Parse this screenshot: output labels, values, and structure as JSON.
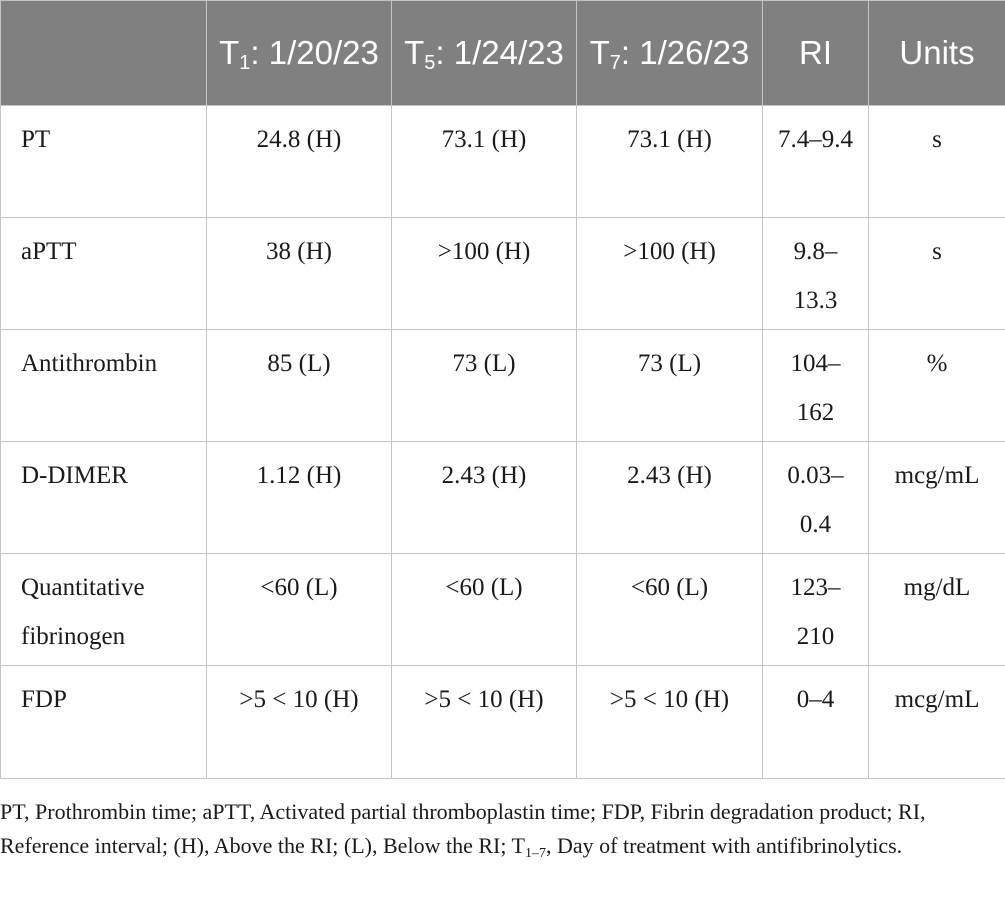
{
  "header": {
    "corner": "",
    "t1_label": "T",
    "t1_sub": "1",
    "t1_date": ": 1/20/23",
    "t5_label": "T",
    "t5_sub": "5",
    "t5_date": ": 1/24/23",
    "t7_label": "T",
    "t7_sub": "7",
    "t7_date": ": 1/26/23",
    "ri": "RI",
    "units": "Units"
  },
  "rows": [
    {
      "param": "PT",
      "t1": "24.8 (H)",
      "t5": "73.1 (H)",
      "t7": "73.1 (H)",
      "ri": "7.4–9.4",
      "units": "s"
    },
    {
      "param": "aPTT",
      "t1": "38 (H)",
      "t5": ">100 (H)",
      "t7": ">100 (H)",
      "ri": "9.8–13.3",
      "units": "s"
    },
    {
      "param": "Antithrombin",
      "t1": "85 (L)",
      "t5": "73 (L)",
      "t7": "73 (L)",
      "ri": "104–162",
      "units": "%"
    },
    {
      "param": "D-DIMER",
      "t1": "1.12 (H)",
      "t5": "2.43 (H)",
      "t7": "2.43 (H)",
      "ri": "0.03–0.4",
      "units": "mcg/mL"
    },
    {
      "param": "Quantitative fibrinogen",
      "t1": "<60 (L)",
      "t5": "<60 (L)",
      "t7": "<60 (L)",
      "ri": "123–210",
      "units": "mg/dL"
    },
    {
      "param": "FDP",
      "t1": ">5 < 10 (H)",
      "t5": ">5 < 10 (H)",
      "t7": ">5 < 10 (H)",
      "ri": "0–4",
      "units": "mcg/mL"
    }
  ],
  "caption": {
    "text_before_sub": "PT, Prothrombin time; aPTT, Activated partial thromboplastin time; FDP, Fibrin degradation product; RI, Reference interval; (H), Above the RI; (L), Below the RI; T",
    "sub": "1–7",
    "text_after_sub": ", Day of treatment with antifibrinolytics."
  }
}
